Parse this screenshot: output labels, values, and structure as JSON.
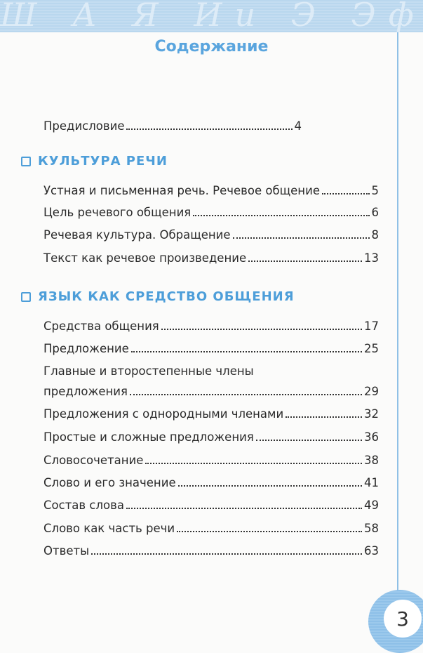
{
  "header": {
    "decor": "Ш А Я Ии Э Эф Ф хФи В"
  },
  "title": "Содержание",
  "preface": {
    "title": "Предисловие",
    "page": "4"
  },
  "sections": [
    {
      "title": "КУЛЬТУРА РЕЧИ",
      "items": [
        {
          "title": "Устная и письменная речь. Речевое общение",
          "page": "5"
        },
        {
          "title": "Цель речевого общения",
          "page": "6"
        },
        {
          "title": "Речевая культура. Обращение",
          "page": "8"
        },
        {
          "title": "Текст как речевое произведение",
          "page": "13"
        }
      ]
    },
    {
      "title": "ЯЗЫК КАК СРЕДСТВО ОБЩЕНИЯ",
      "items": [
        {
          "title": "Средства общения",
          "page": "17"
        },
        {
          "title": "Предложение",
          "page": "25"
        },
        {
          "title": "Главные и второстепенные члены",
          "title2": "предложения",
          "page": "29"
        },
        {
          "title": "Предложения с однородными членами",
          "page": "32"
        },
        {
          "title": "Простые и сложные предложения",
          "page": "36"
        },
        {
          "title": "Словосочетание",
          "page": "38"
        },
        {
          "title": "Слово и его значение",
          "page": "41"
        },
        {
          "title": "Состав слова",
          "page": "49"
        },
        {
          "title": "Слово как часть речи",
          "page": "58"
        },
        {
          "title": "Ответы",
          "page": "63"
        }
      ]
    }
  ],
  "page_number": "3",
  "colors": {
    "accent": "#4d9ed9",
    "band": "#bcd9ef"
  }
}
